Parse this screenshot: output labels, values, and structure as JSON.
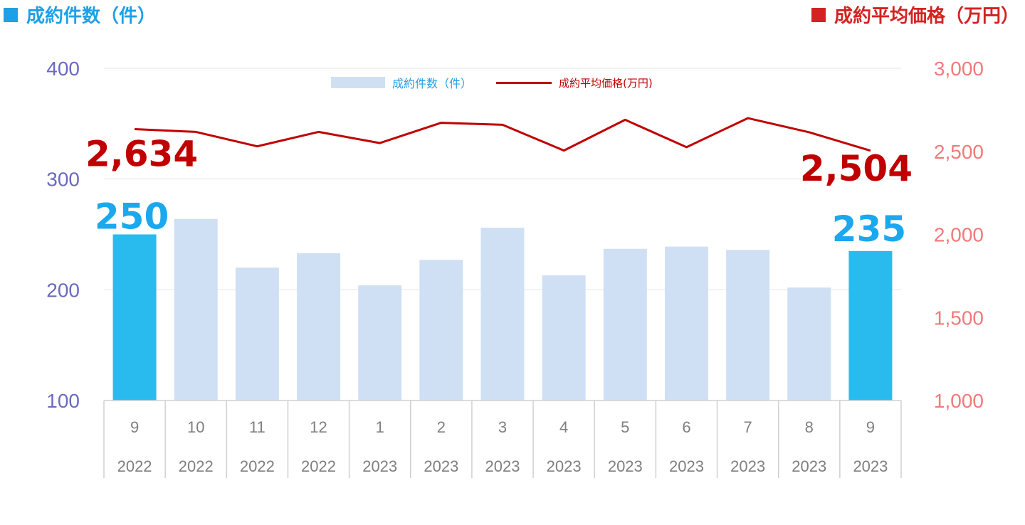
{
  "header": {
    "left_title": "成約件数（件）",
    "right_title": "成約平均価格（万円）"
  },
  "legend": {
    "bars": "成約件数（件）",
    "line": "成約平均価格(万円)"
  },
  "colors": {
    "bar": "#cfe0f4",
    "bar_highlight": "#29bbee",
    "line": "#c00000",
    "left_axis": "#6a6ac0",
    "right_axis": "#f07a7a",
    "left_header": "#1ea0e6",
    "right_header": "#d42222",
    "bar_label": "#1aa8ee",
    "line_label": "#c00000"
  },
  "chart_data": {
    "type": "bar",
    "categories": [
      "9",
      "10",
      "11",
      "12",
      "1",
      "2",
      "3",
      "4",
      "5",
      "6",
      "7",
      "8",
      "9"
    ],
    "years": [
      "2022",
      "2022",
      "2022",
      "2022",
      "2023",
      "2023",
      "2023",
      "2023",
      "2023",
      "2023",
      "2023",
      "2023",
      "2023"
    ],
    "highlight_indices": [
      0,
      12
    ],
    "series": [
      {
        "name": "成約件数（件）",
        "type": "bar",
        "axis": "left",
        "values": [
          250,
          264,
          220,
          233,
          204,
          227,
          256,
          213,
          237,
          239,
          236,
          202,
          235
        ]
      },
      {
        "name": "成約平均価格(万円)",
        "type": "line",
        "axis": "right",
        "values": [
          2634,
          2617,
          2530,
          2617,
          2550,
          2672,
          2660,
          2505,
          2690,
          2525,
          2700,
          2615,
          2504
        ]
      }
    ],
    "y_left": {
      "lim": [
        100,
        400
      ],
      "ticks": [
        "100",
        "200",
        "300",
        "400"
      ]
    },
    "y_right": {
      "lim": [
        1000,
        3000
      ],
      "ticks": [
        "1,000",
        "1,500",
        "2,000",
        "2,500",
        "3,000"
      ]
    },
    "grid": true,
    "legend_position": "top-center",
    "annotations": {
      "bar_first": "250",
      "bar_last": "235",
      "line_first": "2,634",
      "line_last": "2,504"
    }
  }
}
